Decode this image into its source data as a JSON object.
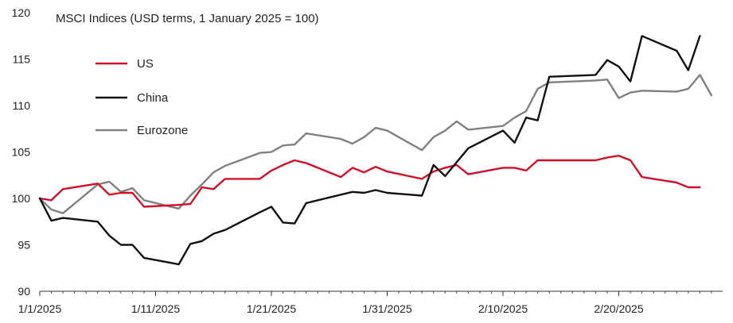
{
  "chart_data": {
    "type": "line",
    "title": "MSCI Indices (USD terms, 1 January 2025 = 100)",
    "xlabel": "",
    "ylabel": "",
    "ylim": [
      90,
      120
    ],
    "y_ticks": [
      "90",
      "95",
      "100",
      "105",
      "110",
      "115",
      "120"
    ],
    "x_ticks": [
      "1/1/2025",
      "1/11/2025",
      "1/21/2025",
      "1/31/2025",
      "2/10/2025",
      "2/20/2025"
    ],
    "grid": false,
    "legend_position": "top-left",
    "series": [
      {
        "name": "US",
        "color": "#d0102a",
        "points": [
          [
            "2025-01-01",
            100.0
          ],
          [
            "2025-01-02",
            99.8
          ],
          [
            "2025-01-03",
            101.0
          ],
          [
            "2025-01-06",
            101.6
          ],
          [
            "2025-01-07",
            100.4
          ],
          [
            "2025-01-08",
            100.6
          ],
          [
            "2025-01-09",
            100.6
          ],
          [
            "2025-01-10",
            99.1
          ],
          [
            "2025-01-13",
            99.3
          ],
          [
            "2025-01-14",
            99.4
          ],
          [
            "2025-01-15",
            101.2
          ],
          [
            "2025-01-16",
            101.0
          ],
          [
            "2025-01-17",
            102.1
          ],
          [
            "2025-01-20",
            102.1
          ],
          [
            "2025-01-21",
            103.0
          ],
          [
            "2025-01-22",
            103.6
          ],
          [
            "2025-01-23",
            104.1
          ],
          [
            "2025-01-24",
            103.8
          ],
          [
            "2025-01-27",
            102.3
          ],
          [
            "2025-01-28",
            103.3
          ],
          [
            "2025-01-29",
            102.8
          ],
          [
            "2025-01-30",
            103.4
          ],
          [
            "2025-01-31",
            102.9
          ],
          [
            "2025-02-03",
            102.1
          ],
          [
            "2025-02-04",
            102.9
          ],
          [
            "2025-02-05",
            103.3
          ],
          [
            "2025-02-06",
            103.6
          ],
          [
            "2025-02-07",
            102.6
          ],
          [
            "2025-02-10",
            103.3
          ],
          [
            "2025-02-11",
            103.3
          ],
          [
            "2025-02-12",
            103.0
          ],
          [
            "2025-02-13",
            104.1
          ],
          [
            "2025-02-14",
            104.1
          ],
          [
            "2025-02-18",
            104.1
          ],
          [
            "2025-02-19",
            104.4
          ],
          [
            "2025-02-20",
            104.6
          ],
          [
            "2025-02-21",
            104.1
          ],
          [
            "2025-02-22",
            102.3
          ],
          [
            "2025-02-25",
            101.7
          ],
          [
            "2025-02-26",
            101.2
          ],
          [
            "2025-02-27",
            101.2
          ]
        ]
      },
      {
        "name": "China",
        "color": "#111111",
        "points": [
          [
            "2025-01-01",
            100.0
          ],
          [
            "2025-01-02",
            97.6
          ],
          [
            "2025-01-03",
            97.9
          ],
          [
            "2025-01-06",
            97.5
          ],
          [
            "2025-01-07",
            96.0
          ],
          [
            "2025-01-08",
            95.0
          ],
          [
            "2025-01-09",
            95.0
          ],
          [
            "2025-01-10",
            93.6
          ],
          [
            "2025-01-13",
            92.9
          ],
          [
            "2025-01-14",
            95.1
          ],
          [
            "2025-01-15",
            95.4
          ],
          [
            "2025-01-16",
            96.2
          ],
          [
            "2025-01-17",
            96.6
          ],
          [
            "2025-01-20",
            98.5
          ],
          [
            "2025-01-21",
            99.1
          ],
          [
            "2025-01-22",
            97.4
          ],
          [
            "2025-01-23",
            97.3
          ],
          [
            "2025-01-24",
            99.5
          ],
          [
            "2025-01-27",
            100.4
          ],
          [
            "2025-01-28",
            100.7
          ],
          [
            "2025-01-29",
            100.6
          ],
          [
            "2025-01-30",
            100.9
          ],
          [
            "2025-01-31",
            100.6
          ],
          [
            "2025-02-03",
            100.3
          ],
          [
            "2025-02-04",
            103.6
          ],
          [
            "2025-02-05",
            102.4
          ],
          [
            "2025-02-06",
            103.9
          ],
          [
            "2025-02-07",
            105.4
          ],
          [
            "2025-02-10",
            107.3
          ],
          [
            "2025-02-11",
            106.0
          ],
          [
            "2025-02-12",
            108.7
          ],
          [
            "2025-02-13",
            108.4
          ],
          [
            "2025-02-14",
            113.1
          ],
          [
            "2025-02-18",
            113.3
          ],
          [
            "2025-02-19",
            114.9
          ],
          [
            "2025-02-20",
            114.2
          ],
          [
            "2025-02-21",
            112.6
          ],
          [
            "2025-02-22",
            117.5
          ],
          [
            "2025-02-25",
            115.9
          ],
          [
            "2025-02-26",
            113.8
          ],
          [
            "2025-02-27",
            117.5
          ]
        ]
      },
      {
        "name": "Eurozone",
        "color": "#808080",
        "points": [
          [
            "2025-01-01",
            100.0
          ],
          [
            "2025-01-02",
            98.8
          ],
          [
            "2025-01-03",
            98.4
          ],
          [
            "2025-01-06",
            101.5
          ],
          [
            "2025-01-07",
            101.8
          ],
          [
            "2025-01-08",
            100.7
          ],
          [
            "2025-01-09",
            101.1
          ],
          [
            "2025-01-10",
            99.8
          ],
          [
            "2025-01-13",
            98.9
          ],
          [
            "2025-01-14",
            100.3
          ],
          [
            "2025-01-15",
            101.5
          ],
          [
            "2025-01-16",
            102.8
          ],
          [
            "2025-01-17",
            103.5
          ],
          [
            "2025-01-20",
            104.9
          ],
          [
            "2025-01-21",
            105.0
          ],
          [
            "2025-01-22",
            105.7
          ],
          [
            "2025-01-23",
            105.8
          ],
          [
            "2025-01-24",
            107.0
          ],
          [
            "2025-01-27",
            106.4
          ],
          [
            "2025-01-28",
            105.9
          ],
          [
            "2025-01-29",
            106.6
          ],
          [
            "2025-01-30",
            107.6
          ],
          [
            "2025-01-31",
            107.3
          ],
          [
            "2025-02-03",
            105.2
          ],
          [
            "2025-02-04",
            106.6
          ],
          [
            "2025-02-05",
            107.3
          ],
          [
            "2025-02-06",
            108.3
          ],
          [
            "2025-02-07",
            107.4
          ],
          [
            "2025-02-10",
            107.8
          ],
          [
            "2025-02-11",
            108.7
          ],
          [
            "2025-02-12",
            109.4
          ],
          [
            "2025-02-13",
            111.8
          ],
          [
            "2025-02-14",
            112.5
          ],
          [
            "2025-02-18",
            112.7
          ],
          [
            "2025-02-19",
            112.8
          ],
          [
            "2025-02-20",
            110.8
          ],
          [
            "2025-02-21",
            111.4
          ],
          [
            "2025-02-22",
            111.6
          ],
          [
            "2025-02-25",
            111.5
          ],
          [
            "2025-02-26",
            111.8
          ],
          [
            "2025-02-27",
            113.3
          ],
          [
            "2025-02-28",
            111.1
          ]
        ]
      }
    ]
  }
}
